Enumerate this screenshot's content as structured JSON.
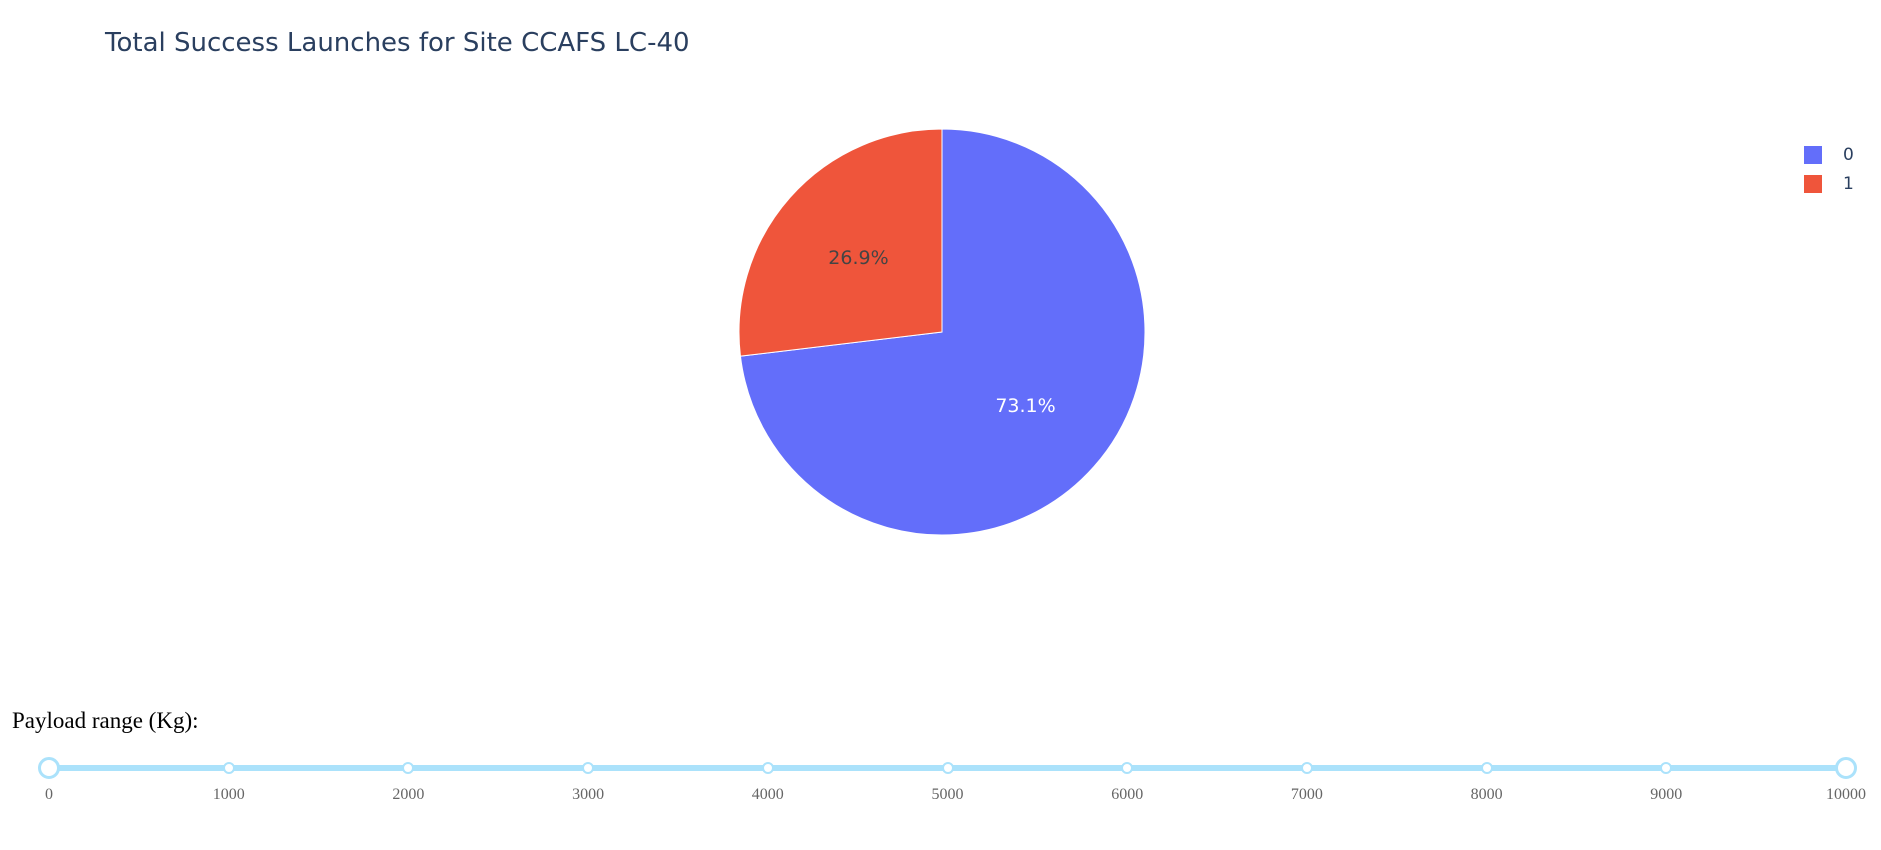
{
  "chart_data": {
    "type": "pie",
    "title": "Total Success Launches for Site CCAFS LC-40",
    "slices": [
      {
        "label": "0",
        "value": 73.1,
        "text": "73.1%",
        "color": "#636efa",
        "text_color": "#ffffff"
      },
      {
        "label": "1",
        "value": 26.9,
        "text": "26.9%",
        "color": "#ef553b",
        "text_color": "#444444"
      }
    ],
    "legend": {
      "placement": "top-right",
      "entries": [
        "0",
        "1"
      ]
    },
    "direction": "clockwise",
    "start_at": "top"
  },
  "slider": {
    "label": "Payload range (Kg):",
    "min": 0,
    "max": 10000,
    "step_marks": [
      "0",
      "1000",
      "2000",
      "3000",
      "4000",
      "5000",
      "6000",
      "7000",
      "8000",
      "9000",
      "10000"
    ],
    "selected_range": [
      0,
      10000
    ],
    "color": "#abe2fb"
  }
}
